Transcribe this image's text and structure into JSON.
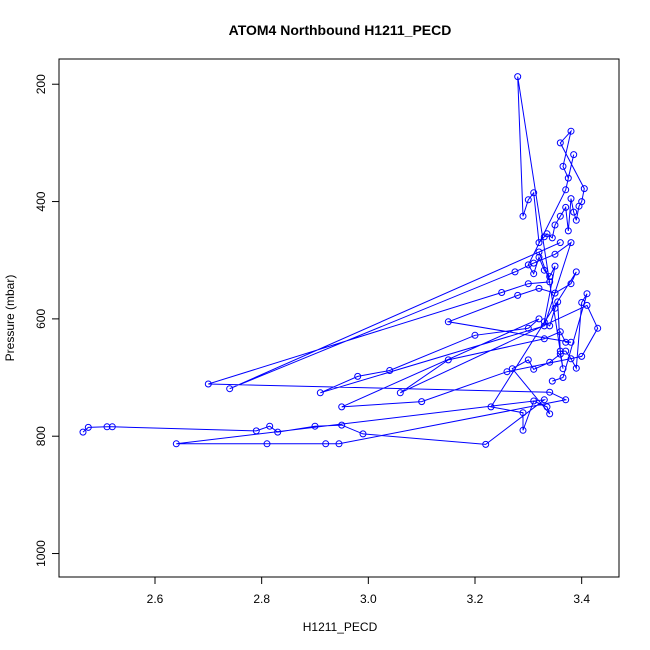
{
  "chart_data": {
    "type": "line",
    "title": "ATOM4 Northbound H1211_PECD",
    "xlabel": "H1211_PECD",
    "ylabel": "Pressure (mbar)",
    "xlim": [
      2.42,
      3.47
    ],
    "ylim": [
      1040,
      157
    ],
    "y_reversed": true,
    "grid": false,
    "x_ticks": [
      2.6,
      2.8,
      3.0,
      3.2,
      3.4
    ],
    "x_tick_labels": [
      "2.6",
      "2.8",
      "3.0",
      "3.2",
      "3.4"
    ],
    "y_ticks": [
      200,
      400,
      600,
      800,
      1000
    ],
    "y_tick_labels": [
      "200",
      "400",
      "600",
      "800",
      "1000"
    ],
    "series": [
      {
        "color": "#0000ff",
        "marker": "open-circle",
        "points": [
          [
            2.465,
            793
          ],
          [
            2.475,
            785
          ],
          [
            2.51,
            784
          ],
          [
            2.52,
            784
          ],
          [
            2.79,
            791
          ],
          [
            2.815,
            783
          ],
          [
            2.83,
            793
          ],
          [
            2.9,
            783
          ],
          [
            2.95,
            781
          ],
          [
            2.99,
            796
          ],
          [
            3.22,
            814
          ],
          [
            3.33,
            738
          ],
          [
            2.64,
            813
          ],
          [
            2.81,
            813
          ],
          [
            2.92,
            813
          ],
          [
            2.945,
            813
          ],
          [
            3.37,
            738
          ],
          [
            3.34,
            725
          ],
          [
            2.7,
            711
          ],
          [
            3.25,
            555
          ],
          [
            3.3,
            540
          ],
          [
            3.34,
            537
          ],
          [
            3.32,
            486
          ],
          [
            3.36,
            470
          ],
          [
            2.74,
            719
          ],
          [
            3.275,
            520
          ],
          [
            3.31,
            505
          ],
          [
            3.35,
            490
          ],
          [
            3.38,
            470
          ],
          [
            3.33,
            612
          ],
          [
            2.91,
            726
          ],
          [
            2.98,
            698
          ],
          [
            3.04,
            688
          ],
          [
            3.2,
            628
          ],
          [
            3.3,
            616
          ],
          [
            3.32,
            600
          ],
          [
            2.95,
            750
          ],
          [
            3.1,
            741
          ],
          [
            3.26,
            690
          ],
          [
            3.4,
            664
          ],
          [
            3.43,
            616
          ],
          [
            3.41,
            577
          ],
          [
            3.06,
            726
          ],
          [
            3.15,
            670
          ],
          [
            3.33,
            634
          ],
          [
            3.36,
            622
          ],
          [
            3.37,
            640
          ],
          [
            3.38,
            640
          ],
          [
            3.15,
            605
          ],
          [
            3.28,
            560
          ],
          [
            3.32,
            548
          ],
          [
            3.35,
            556
          ],
          [
            3.38,
            540
          ],
          [
            3.39,
            520
          ],
          [
            3.23,
            750
          ],
          [
            3.29,
            760
          ],
          [
            3.29,
            790
          ],
          [
            3.31,
            740
          ],
          [
            3.335,
            750
          ],
          [
            3.34,
            762
          ],
          [
            3.27,
            685
          ],
          [
            3.3,
            670
          ],
          [
            3.31,
            686
          ],
          [
            3.34,
            674
          ],
          [
            3.36,
            660
          ],
          [
            3.365,
            685
          ],
          [
            3.28,
            187
          ],
          [
            3.29,
            425
          ],
          [
            3.3,
            397
          ],
          [
            3.31,
            385
          ],
          [
            3.32,
            470
          ],
          [
            3.33,
            460
          ],
          [
            3.335,
            455
          ],
          [
            3.345,
            462
          ],
          [
            3.35,
            440
          ],
          [
            3.36,
            425
          ],
          [
            3.37,
            410
          ],
          [
            3.375,
            450
          ],
          [
            3.38,
            395
          ],
          [
            3.385,
            418
          ],
          [
            3.39,
            432
          ],
          [
            3.395,
            408
          ],
          [
            3.4,
            400
          ],
          [
            3.405,
            378
          ],
          [
            3.36,
            300
          ],
          [
            3.38,
            280
          ],
          [
            3.365,
            340
          ],
          [
            3.375,
            360
          ],
          [
            3.385,
            320
          ],
          [
            3.37,
            380
          ],
          [
            3.3,
            508
          ],
          [
            3.31,
            523
          ],
          [
            3.32,
            495
          ],
          [
            3.33,
            517
          ],
          [
            3.34,
            528
          ],
          [
            3.35,
            510
          ],
          [
            3.33,
            605
          ],
          [
            3.34,
            612
          ],
          [
            3.35,
            582
          ],
          [
            3.355,
            571
          ],
          [
            3.36,
            655
          ],
          [
            3.37,
            655
          ],
          [
            3.38,
            668
          ],
          [
            3.39,
            684
          ],
          [
            3.4,
            572
          ],
          [
            3.41,
            557
          ],
          [
            3.365,
            700
          ],
          [
            3.345,
            706
          ]
        ]
      }
    ]
  }
}
